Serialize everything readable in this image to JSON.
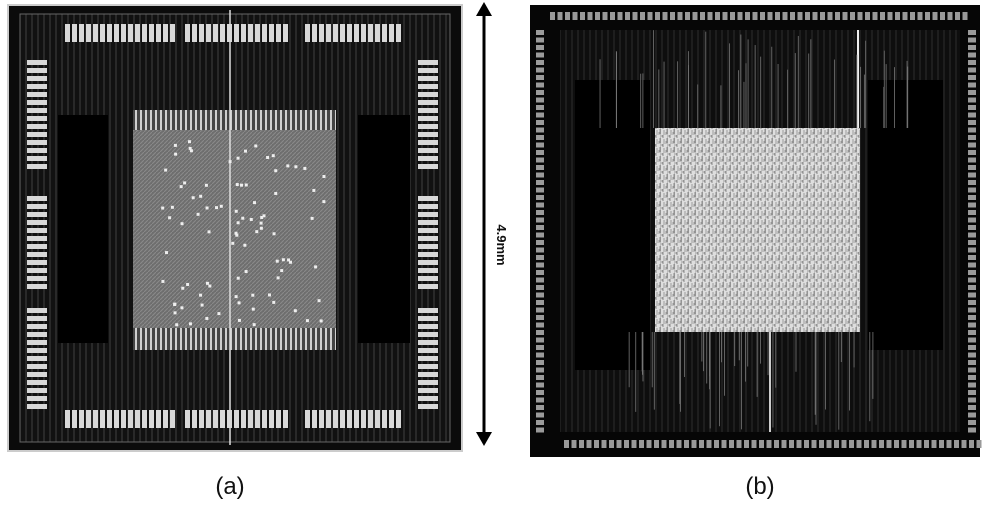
{
  "figure": {
    "scale_label": "4.9mm",
    "panels": [
      {
        "label": "(a)"
      },
      {
        "label": "(b)"
      }
    ]
  }
}
